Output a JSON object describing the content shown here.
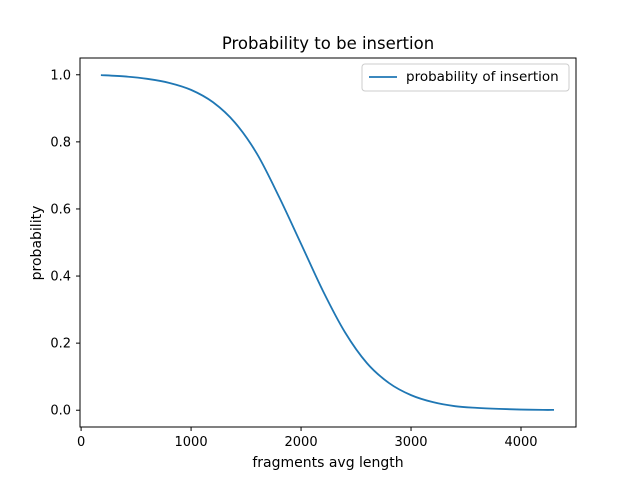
{
  "chart_data": {
    "type": "line",
    "title": "Probability to be insertion",
    "xlabel": "fragments avg length",
    "ylabel": "probability",
    "xlim": [
      -10,
      4500
    ],
    "ylim": [
      -0.05,
      1.05
    ],
    "x_ticks": [
      0,
      1000,
      2000,
      3000,
      4000
    ],
    "y_ticks": [
      0.0,
      0.2,
      0.4,
      0.6,
      0.8,
      1.0
    ],
    "x_tick_labels": [
      "0",
      "1000",
      "2000",
      "3000",
      "4000"
    ],
    "y_tick_labels": [
      "0.0",
      "0.2",
      "0.4",
      "0.6",
      "0.8",
      "1.0"
    ],
    "grid": false,
    "legend_position": "top-right",
    "series": [
      {
        "name": "probability of insertion",
        "color": "#1f77b4",
        "x": [
          180,
          400,
          600,
          800,
          1000,
          1200,
          1400,
          1600,
          1800,
          2000,
          2200,
          2400,
          2600,
          2800,
          3000,
          3200,
          3400,
          3600,
          3800,
          4000,
          4200,
          4300
        ],
        "values": [
          0.999,
          0.995,
          0.988,
          0.976,
          0.955,
          0.918,
          0.857,
          0.764,
          0.636,
          0.496,
          0.355,
          0.232,
          0.14,
          0.081,
          0.045,
          0.024,
          0.012,
          0.007,
          0.004,
          0.002,
          0.001,
          0.001
        ]
      }
    ]
  }
}
